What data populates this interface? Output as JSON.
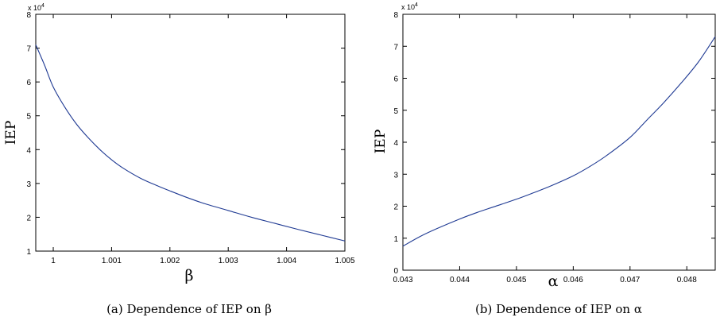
{
  "chart_data": [
    {
      "type": "line",
      "caption": "(a)  Dependence of IEP on β",
      "xlabel": "β",
      "ylabel": "IEP",
      "y_multiplier": "x 10",
      "y_multiplier_exponent": "4",
      "xlim": [
        0.9997,
        1.005
      ],
      "ylim": [
        1,
        8
      ],
      "xticks": [
        {
          "value": 1,
          "label": "1"
        },
        {
          "value": 1.001,
          "label": "1.001"
        },
        {
          "value": 1.002,
          "label": "1.002"
        },
        {
          "value": 1.003,
          "label": "1.003"
        },
        {
          "value": 1.004,
          "label": "1.004"
        },
        {
          "value": 1.005,
          "label": "1.005"
        }
      ],
      "yticks": [
        {
          "value": 1,
          "label": "1"
        },
        {
          "value": 2,
          "label": "2"
        },
        {
          "value": 3,
          "label": "3"
        },
        {
          "value": 4,
          "label": "4"
        },
        {
          "value": 5,
          "label": "5"
        },
        {
          "value": 6,
          "label": "6"
        },
        {
          "value": 7,
          "label": "7"
        },
        {
          "value": 8,
          "label": "8"
        }
      ],
      "grid": false,
      "line_color": "#1f3a93",
      "series": [
        {
          "x": [
            0.9997,
            0.99985,
            1.0,
            1.0002,
            1.0004,
            1.0006,
            1.0008,
            1.001,
            1.0012,
            1.0015,
            1.0018,
            1.002,
            1.0023,
            1.0026,
            1.003,
            1.0034,
            1.0038,
            1.0042,
            1.0046,
            1.005
          ],
          "y": [
            7.1,
            6.5,
            5.85,
            5.25,
            4.75,
            4.35,
            4.0,
            3.7,
            3.45,
            3.15,
            2.92,
            2.78,
            2.58,
            2.4,
            2.2,
            2.0,
            1.82,
            1.64,
            1.47,
            1.3
          ]
        }
      ]
    },
    {
      "type": "line",
      "caption": "(b)  Dependence of IEP on α",
      "xlabel": "α",
      "ylabel": "IEP",
      "y_multiplier": "x 10",
      "y_multiplier_exponent": "4",
      "xlim": [
        0.043,
        0.0485
      ],
      "ylim": [
        0,
        8
      ],
      "xticks": [
        {
          "value": 0.043,
          "label": "0.043"
        },
        {
          "value": 0.044,
          "label": "0.044"
        },
        {
          "value": 0.045,
          "label": "0.045"
        },
        {
          "value": 0.046,
          "label": "0.046"
        },
        {
          "value": 0.047,
          "label": "0.047"
        },
        {
          "value": 0.048,
          "label": "0.048"
        }
      ],
      "yticks": [
        {
          "value": 0,
          "label": "0"
        },
        {
          "value": 1,
          "label": "1"
        },
        {
          "value": 2,
          "label": "2"
        },
        {
          "value": 3,
          "label": "3"
        },
        {
          "value": 4,
          "label": "4"
        },
        {
          "value": 5,
          "label": "5"
        },
        {
          "value": 6,
          "label": "6"
        },
        {
          "value": 7,
          "label": "7"
        },
        {
          "value": 8,
          "label": "8"
        }
      ],
      "grid": false,
      "line_color": "#1f3a93",
      "series": [
        {
          "x": [
            0.043,
            0.0433,
            0.0436,
            0.044,
            0.0443,
            0.0446,
            0.045,
            0.0453,
            0.0456,
            0.046,
            0.0463,
            0.0466,
            0.047,
            0.0473,
            0.0476,
            0.0479,
            0.0482,
            0.0485
          ],
          "y": [
            0.75,
            1.05,
            1.3,
            1.6,
            1.8,
            1.98,
            2.22,
            2.42,
            2.63,
            2.95,
            3.25,
            3.6,
            4.15,
            4.7,
            5.25,
            5.85,
            6.5,
            7.3
          ]
        }
      ]
    }
  ]
}
